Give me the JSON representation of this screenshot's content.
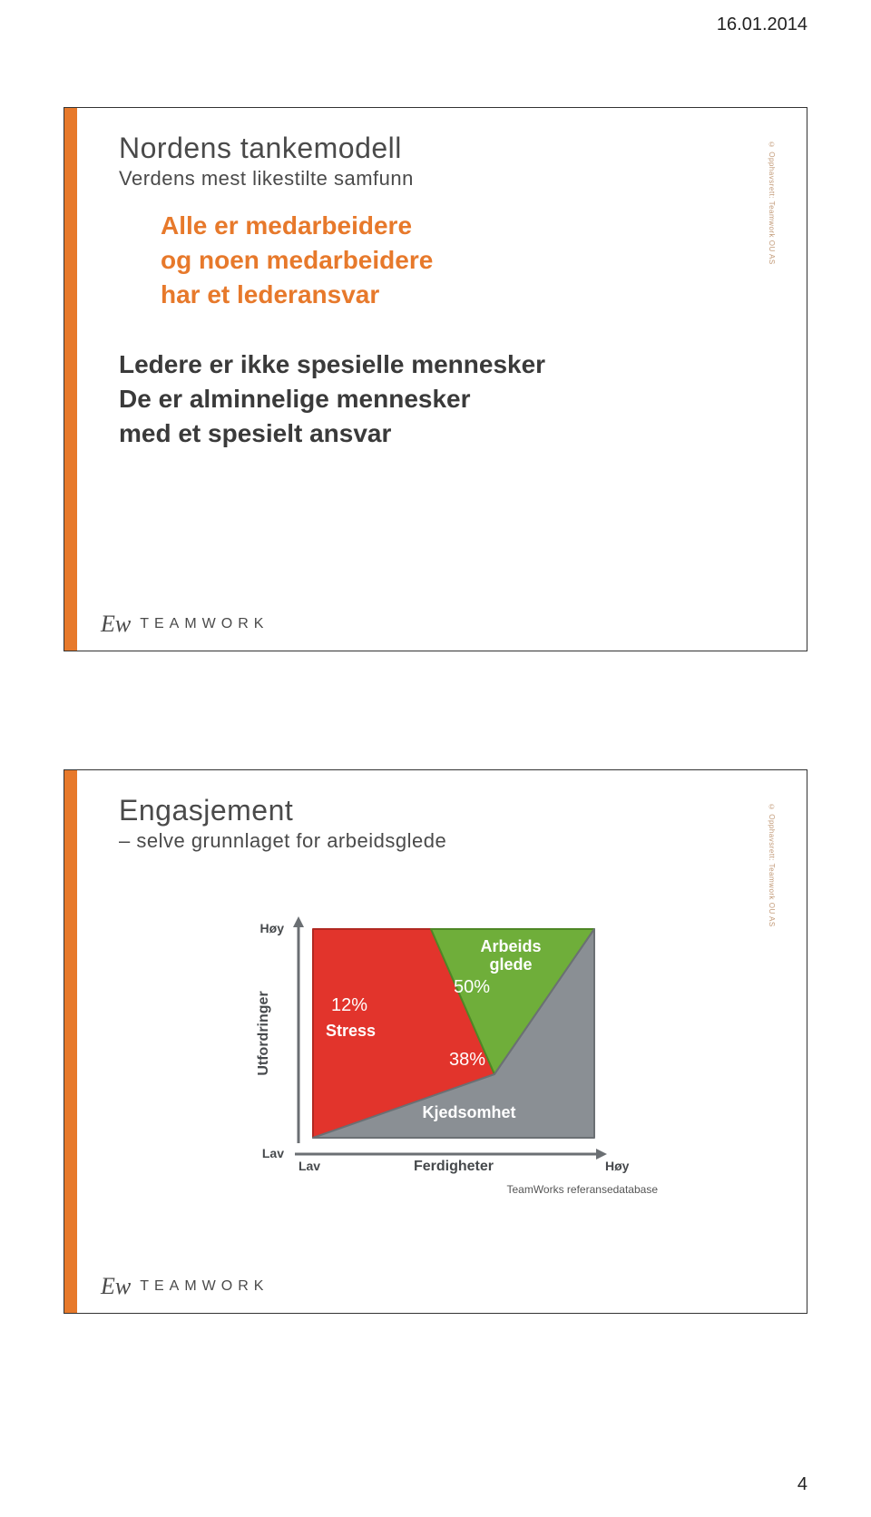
{
  "header": {
    "date": "16.01.2014",
    "page_number": "4"
  },
  "slide1": {
    "title": "Nordens tankemodell",
    "subtitle": "Verdens mest likestilte samfunn",
    "orange_lines": [
      "Alle er medarbeidere",
      "og noen medarbeidere",
      "har et lederansvar"
    ],
    "dark_lines": [
      "Ledere er ikke spesielle mennesker",
      "De er alminnelige mennesker",
      "med et spesielt ansvar"
    ],
    "copyright": "© Opphavsrett: Teamwork OU AS",
    "mark": {
      "icon": "Ew",
      "text": "TEAMWORK"
    }
  },
  "slide2": {
    "title": "Engasjement",
    "subtitle": "– selve grunnlaget for arbeidsglede",
    "copyright": "© Opphavsrett: Teamwork OU AS",
    "mark": {
      "icon": "Ew",
      "text": "TEAMWORK"
    },
    "chart": {
      "type": "triangle-area",
      "plot_bg": "#ffffff",
      "y_axis": {
        "label": "Utfordringer",
        "low": "Lav",
        "high": "Høy"
      },
      "x_axis": {
        "label": "Ferdigheter",
        "low": "Lav",
        "high": "Høy"
      },
      "axis_color": "#6b6f73",
      "regions": [
        {
          "name": "Stress",
          "label": "Stress",
          "pct": "12%",
          "fill": "#e2342c",
          "stroke": "#b12821",
          "points": [
            [
              0,
              0
            ],
            [
              0,
              230
            ],
            [
              130,
              230
            ],
            [
              200,
              70
            ]
          ]
        },
        {
          "name": "Arbeidsglede",
          "label": "Arbeids\nglede",
          "pct": "50%",
          "fill": "#6fae3a",
          "stroke": "#4e8726",
          "points": [
            [
              130,
              230
            ],
            [
              310,
              230
            ],
            [
              200,
              70
            ]
          ]
        },
        {
          "name": "Kjedsomhet",
          "label": "Kjedsomhet",
          "pct": "38%",
          "fill": "#8a8f94",
          "stroke": "#6b7074",
          "points": [
            [
              0,
              0
            ],
            [
              200,
              70
            ],
            [
              310,
              230
            ],
            [
              310,
              0
            ]
          ]
        }
      ]
    },
    "ref_caption": "TeamWorks referansedatabase"
  }
}
